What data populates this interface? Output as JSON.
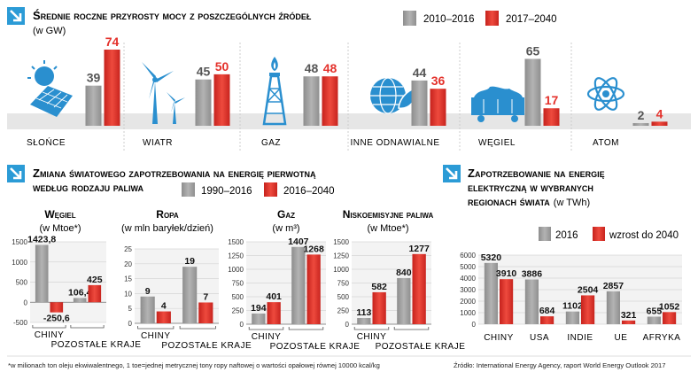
{
  "colors": {
    "gray": "#a3a3a3",
    "red": "#e4312b",
    "arrow": "#2b9bd6",
    "band": "#e8e8e8",
    "icon": "#2a8fcf"
  },
  "section1": {
    "title": "Średnie roczne przyrosty mocy z poszczególnych źródeł",
    "subtitle": "(w GW)",
    "legend": [
      "2010–2016",
      "2017–2040"
    ]
  },
  "section2": {
    "title_line1": "Zmiana światowego zapotrzebowania na energię pierwotną",
    "title_line2": "według rodzaju paliwa",
    "legend": [
      "1990–2016",
      "2016–2040"
    ]
  },
  "section3": {
    "title_line1": "Zapotrzebowanie na energię",
    "title_line2": "elektryczną w wybranych",
    "title_line3": "regionach świata",
    "title_unit": "(w TWh)",
    "legend": [
      "2016",
      "wzrost do 2040"
    ]
  },
  "footnote": "*w milionach ton oleju ekwiwalentnego, 1 toe=jednej metrycznej tony ropy naftowej o wartości opałowej równej 10000 kcal/kg",
  "source": "Źródło: International Energy Agency, raport World Energy Outlook 2017",
  "chart_data": [
    {
      "id": "capacity",
      "type": "bar",
      "categories": [
        "Słońce",
        "Wiatr",
        "Gaz",
        "Inne odnawialne",
        "Węgiel",
        "Atom"
      ],
      "icons": [
        "solar-panel-icon",
        "wind-turbine-icon",
        "gas-derrick-icon",
        "globe-leaf-icon",
        "coal-wagon-icon",
        "atom-icon"
      ],
      "series": [
        {
          "name": "2010–2016",
          "values": [
            39,
            45,
            48,
            44,
            65,
            2
          ],
          "labels": [
            "39",
            "45",
            "48",
            "44",
            "65",
            "2"
          ]
        },
        {
          "name": "2017–2040",
          "values": [
            74,
            50,
            48,
            36,
            17,
            4
          ],
          "labels": [
            "74",
            "50",
            "48",
            "36",
            "17",
            "4"
          ]
        }
      ],
      "ylim": [
        0,
        74
      ]
    },
    {
      "id": "coal",
      "type": "bar",
      "title": "Węgiel",
      "unit": "(w Mtoe*)",
      "categories": [
        "Chiny",
        "pozostałe kraje"
      ],
      "series": [
        {
          "name": "1990–2016",
          "values": [
            1423.8,
            106.4
          ],
          "labels": [
            "1423,8",
            "106,4"
          ]
        },
        {
          "name": "2016–2040",
          "values": [
            -250.6,
            425
          ],
          "labels": [
            "-250,6",
            "425"
          ]
        }
      ],
      "yticks": [
        -500,
        0,
        500,
        1000,
        1500
      ],
      "tick_labels": [
        "-500",
        "0",
        "500",
        "1000",
        "1500"
      ],
      "ylim": [
        -500,
        1500
      ]
    },
    {
      "id": "oil",
      "type": "bar",
      "title": "Ropa",
      "unit": "(w mln baryłek/dzień)",
      "categories": [
        "Chiny",
        "pozostałe kraje"
      ],
      "series": [
        {
          "name": "1990–2016",
          "values": [
            9,
            19
          ],
          "labels": [
            "9",
            "19"
          ]
        },
        {
          "name": "2016–2040",
          "values": [
            4,
            7
          ],
          "labels": [
            "4",
            "7"
          ]
        }
      ],
      "yticks": [
        0,
        5,
        10,
        15,
        20,
        25
      ],
      "tick_labels": [
        "0",
        "5",
        "10",
        "15",
        "20",
        "25"
      ],
      "ylim": [
        0,
        25
      ]
    },
    {
      "id": "gas",
      "type": "bar",
      "title": "Gaz",
      "unit": "(w m³)",
      "categories": [
        "Chiny",
        "pozostałe kraje"
      ],
      "series": [
        {
          "name": "1990–2016",
          "values": [
            194,
            1407
          ],
          "labels": [
            "194",
            "1407"
          ]
        },
        {
          "name": "2016–2040",
          "values": [
            401,
            1268
          ],
          "labels": [
            "401",
            "1268"
          ]
        }
      ],
      "yticks": [
        0,
        250,
        500,
        750,
        1000,
        1250,
        1500
      ],
      "tick_labels": [
        "0",
        "250",
        "500",
        "750",
        "1000",
        "1250",
        "1500"
      ],
      "ylim": [
        0,
        1500
      ]
    },
    {
      "id": "lowemission",
      "type": "bar",
      "title": "Niskoemisyjne paliwa",
      "unit": "(w Mtoe*)",
      "categories": [
        "Chiny",
        "pozostałe kraje"
      ],
      "series": [
        {
          "name": "1990–2016",
          "values": [
            113,
            840
          ],
          "labels": [
            "113",
            "840"
          ]
        },
        {
          "name": "2016–2040",
          "values": [
            582,
            1277
          ],
          "labels": [
            "582",
            "1277"
          ]
        }
      ],
      "yticks": [
        0,
        250,
        500,
        750,
        1000,
        1250,
        1500
      ],
      "tick_labels": [
        "0",
        "250",
        "500",
        "750",
        "1000",
        "1250",
        "1500"
      ],
      "ylim": [
        0,
        1500
      ]
    },
    {
      "id": "electricity",
      "type": "bar",
      "categories": [
        "Chiny",
        "USA",
        "Indie",
        "UE",
        "Afryka"
      ],
      "series": [
        {
          "name": "2016",
          "values": [
            5320,
            3886,
            1102,
            2857,
            655
          ],
          "labels": [
            "5320",
            "3886",
            "1102",
            "2857",
            "655"
          ]
        },
        {
          "name": "wzrost do 2040",
          "values": [
            3910,
            684,
            2504,
            321,
            1052
          ],
          "labels": [
            "3910",
            "684",
            "2504",
            "321",
            "1052"
          ]
        }
      ],
      "yticks": [
        0,
        1000,
        2000,
        3000,
        4000,
        5000,
        6000
      ],
      "tick_labels": [
        "0",
        "1000",
        "2000",
        "3000",
        "4000",
        "5000",
        "6000"
      ],
      "ylim": [
        0,
        6000
      ]
    }
  ]
}
